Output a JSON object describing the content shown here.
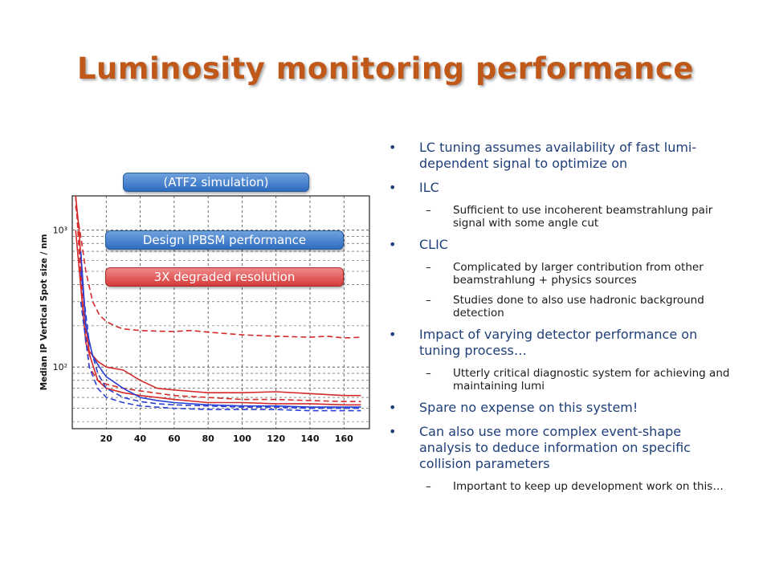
{
  "slide": {
    "title": "Luminosity monitoring performance"
  },
  "labels": {
    "sim": "(ATF2 simulation)",
    "design": "Design IPBSM performance",
    "degraded": "3X degraded resolution"
  },
  "colors": {
    "title": "#c0581a",
    "bullet_text": "#1f3f7a",
    "series_red": "#d42a2a",
    "series_blue": "#2a3fd4"
  },
  "bullets": [
    {
      "text": "LC tuning assumes availability of fast lumi-dependent signal to optimize on",
      "sub": []
    },
    {
      "text": "ILC",
      "sub": [
        "Sufficient to use incoherent beamstrahlung pair signal with some angle cut"
      ]
    },
    {
      "text": "CLIC",
      "sub": [
        "Complicated by larger contribution from other beamstrahlung + physics sources",
        "Studies done to also use hadronic background detection"
      ]
    },
    {
      "text": "Impact of varying detector performance on tuning process…",
      "sub": [
        "Utterly critical diagnostic system for achieving and maintaining lumi"
      ]
    },
    {
      "text": "Spare no expense on this system!",
      "sub": []
    },
    {
      "text": "Can also use more complex event-shape analysis to deduce information on specific collision parameters",
      "sub": [
        "Important to keep up development work on this…"
      ]
    }
  ],
  "chart_data": {
    "type": "line",
    "ylabel": "Median IP Vertical Spot size / nm",
    "xlabel": "",
    "xticks": [
      20,
      40,
      60,
      80,
      100,
      120,
      140,
      160
    ],
    "ytick_labels": [
      "10³",
      "10²"
    ],
    "xlim": [
      0,
      175
    ],
    "ylim_log10": [
      1.55,
      3.25
    ],
    "log_y": true,
    "grid": true,
    "series": [
      {
        "color": "red",
        "dash": true,
        "x": [
          2,
          5,
          8,
          12,
          16,
          20,
          25,
          30,
          40,
          50,
          60,
          70,
          80,
          100,
          120,
          140,
          150,
          160,
          170
        ],
        "y": [
          1500,
          900,
          500,
          300,
          240,
          215,
          200,
          190,
          185,
          183,
          182,
          185,
          180,
          172,
          168,
          165,
          168,
          163,
          165
        ]
      },
      {
        "color": "red",
        "dash": false,
        "x": [
          2,
          4,
          6,
          8,
          10,
          15,
          20,
          30,
          40,
          50,
          60,
          80,
          100,
          120,
          140,
          160,
          170
        ],
        "y": [
          2000,
          1000,
          400,
          200,
          130,
          110,
          100,
          95,
          80,
          70,
          68,
          65,
          65,
          66,
          64,
          62,
          62
        ]
      },
      {
        "color": "red",
        "dash": true,
        "x": [
          2,
          6,
          10,
          15,
          20,
          30,
          40,
          60,
          80,
          100,
          120,
          140,
          160,
          170
        ],
        "y": [
          1800,
          300,
          100,
          80,
          75,
          70,
          67,
          62,
          60,
          58,
          58,
          57,
          56,
          56
        ]
      },
      {
        "color": "red",
        "dash": false,
        "x": [
          2,
          8,
          15,
          20,
          30,
          40,
          60,
          80,
          100,
          120,
          140,
          160,
          170
        ],
        "y": [
          1000,
          150,
          80,
          70,
          65,
          62,
          58,
          55,
          55,
          54,
          54,
          53,
          53
        ]
      },
      {
        "color": "blue",
        "dash": false,
        "x": [
          5,
          8,
          12,
          16,
          20,
          30,
          40,
          50,
          60,
          80,
          100,
          120,
          140,
          160,
          170
        ],
        "y": [
          700,
          200,
          120,
          100,
          85,
          70,
          60,
          57,
          55,
          53,
          52,
          52,
          51,
          51,
          51
        ]
      },
      {
        "color": "blue",
        "dash": true,
        "x": [
          5,
          10,
          15,
          20,
          30,
          40,
          50,
          60,
          80,
          100,
          120,
          140,
          160,
          170
        ],
        "y": [
          500,
          150,
          90,
          70,
          60,
          56,
          54,
          53,
          52,
          51,
          51,
          50,
          50,
          50
        ]
      },
      {
        "color": "blue",
        "dash": true,
        "x": [
          5,
          10,
          15,
          20,
          30,
          40,
          60,
          80,
          100,
          120,
          140,
          160,
          170
        ],
        "y": [
          300,
          100,
          70,
          60,
          55,
          52,
          50,
          49,
          49,
          49,
          48,
          48,
          48
        ]
      }
    ]
  }
}
